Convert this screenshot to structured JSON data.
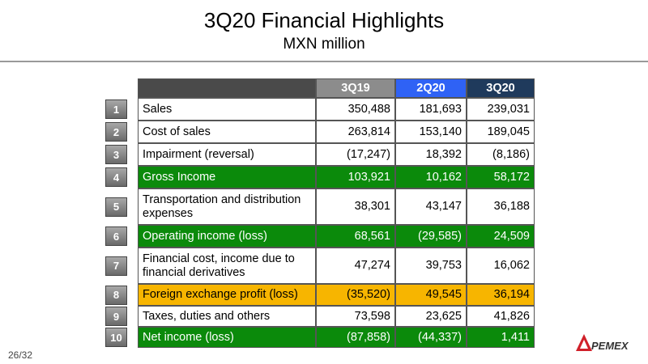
{
  "header": {
    "title": "3Q20 Financial Highlights",
    "subtitle": "MXN million"
  },
  "table": {
    "columns": [
      "3Q19",
      "2Q20",
      "3Q20"
    ],
    "rows": [
      {
        "no": "1",
        "label": "Sales",
        "values": [
          "350,488",
          "181,693",
          "239,031"
        ]
      },
      {
        "no": "2",
        "label": "Cost of sales",
        "values": [
          "263,814",
          "153,140",
          "189,045"
        ]
      },
      {
        "no": "3",
        "label": "Impairment (reversal)",
        "values": [
          "(17,247)",
          "18,392",
          "(8,186)"
        ]
      },
      {
        "no": "4",
        "label": "Gross Income",
        "values": [
          "103,921",
          "10,162",
          "58,172"
        ]
      },
      {
        "no": "5",
        "label": "Transportation and distribution expenses",
        "values": [
          "38,301",
          "43,147",
          "36,188"
        ]
      },
      {
        "no": "6",
        "label": "Operating income (loss)",
        "values": [
          "68,561",
          "(29,585)",
          "24,509"
        ]
      },
      {
        "no": "7",
        "label": "Financial cost, income due to financial derivatives",
        "values": [
          "47,274",
          "39,753",
          "16,062"
        ]
      },
      {
        "no": "8",
        "label": "Foreign exchange profit (loss)",
        "values": [
          "(35,520)",
          "49,545",
          "36,194"
        ]
      },
      {
        "no": "9",
        "label": "Taxes, duties and others",
        "values": [
          "73,598",
          "23,625",
          "41,826"
        ]
      },
      {
        "no": "10",
        "label": "Net income (loss)",
        "values": [
          "(87,858)",
          "(44,337)",
          "1,411"
        ]
      }
    ]
  },
  "footer": {
    "page": "26/32",
    "logo": "PEMEX"
  }
}
